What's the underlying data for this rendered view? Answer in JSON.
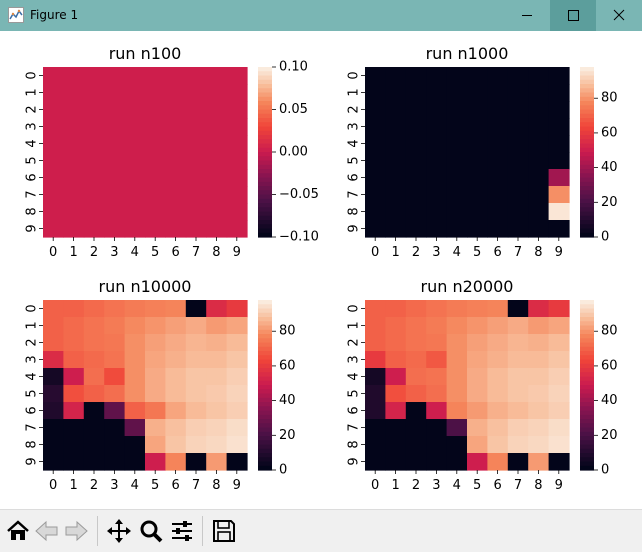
{
  "window": {
    "title": "Figure 1",
    "icon": "matplotlib-figure-icon"
  },
  "window_controls": [
    "minimize-icon",
    "maximize-icon",
    "close-icon"
  ],
  "toolbar": {
    "buttons": [
      "home-icon",
      "back-arrow-icon",
      "forward-arrow-icon",
      "pan-move-icon",
      "zoom-magnifier-icon",
      "configure-subplots-icon",
      "save-floppy-icon"
    ]
  },
  "chart_data": [
    {
      "type": "heatmap",
      "title": "run n100",
      "xticks": [
        "0",
        "1",
        "2",
        "3",
        "4",
        "5",
        "6",
        "7",
        "8",
        "9"
      ],
      "yticks": [
        "0",
        "1",
        "2",
        "3",
        "4",
        "5",
        "6",
        "7",
        "8",
        "9"
      ],
      "colorbar": {
        "min": -0.1,
        "max": 0.1,
        "ticks": [
          "0.10",
          "0.05",
          "0.00",
          "−0.05",
          "−0.10"
        ],
        "colormap": "rocket"
      },
      "values": [
        [
          0,
          0,
          0,
          0,
          0,
          0,
          0,
          0,
          0,
          0
        ],
        [
          0,
          0,
          0,
          0,
          0,
          0,
          0,
          0,
          0,
          0
        ],
        [
          0,
          0,
          0,
          0,
          0,
          0,
          0,
          0,
          0,
          0
        ],
        [
          0,
          0,
          0,
          0,
          0,
          0,
          0,
          0,
          0,
          0
        ],
        [
          0,
          0,
          0,
          0,
          0,
          0,
          0,
          0,
          0,
          0
        ],
        [
          0,
          0,
          0,
          0,
          0,
          0,
          0,
          0,
          0,
          0
        ],
        [
          0,
          0,
          0,
          0,
          0,
          0,
          0,
          0,
          0,
          0
        ],
        [
          0,
          0,
          0,
          0,
          0,
          0,
          0,
          0,
          0,
          0
        ],
        [
          0,
          0,
          0,
          0,
          0,
          0,
          0,
          0,
          0,
          0
        ],
        [
          0,
          0,
          0,
          0,
          0,
          0,
          0,
          0,
          0,
          0
        ]
      ]
    },
    {
      "type": "heatmap",
      "title": "run n1000",
      "xticks": [
        "0",
        "1",
        "2",
        "3",
        "4",
        "5",
        "6",
        "7",
        "8",
        "9"
      ],
      "yticks": [
        "0",
        "1",
        "2",
        "3",
        "4",
        "5",
        "6",
        "7",
        "8",
        "9"
      ],
      "colorbar": {
        "min": 0,
        "max": 98,
        "ticks": [
          "80",
          "60",
          "40",
          "20",
          "0"
        ],
        "colormap": "rocket"
      },
      "values": [
        [
          0,
          0,
          0,
          0,
          0,
          0,
          0,
          0,
          0,
          0
        ],
        [
          0,
          0,
          0,
          0,
          0,
          0,
          0,
          0,
          0,
          0
        ],
        [
          0,
          0,
          0,
          0,
          0,
          0,
          0,
          0,
          0,
          0
        ],
        [
          0,
          0,
          0,
          0,
          0,
          0,
          0,
          0,
          0,
          0
        ],
        [
          0,
          0,
          0,
          0,
          0,
          0,
          0,
          0,
          0,
          0
        ],
        [
          0,
          0,
          0,
          0,
          0,
          0,
          0,
          0,
          0,
          0
        ],
        [
          0,
          0,
          0,
          0,
          0,
          0,
          0,
          0,
          0,
          40
        ],
        [
          0,
          0,
          0,
          0,
          0,
          0,
          0,
          0,
          0,
          80
        ],
        [
          0,
          0,
          0,
          0,
          0,
          0,
          0,
          0,
          0,
          97
        ],
        [
          0,
          0,
          0,
          0,
          0,
          0,
          0,
          0,
          0,
          0
        ]
      ]
    },
    {
      "type": "heatmap",
      "title": "run n10000",
      "xticks": [
        "0",
        "1",
        "2",
        "3",
        "4",
        "5",
        "6",
        "7",
        "8",
        "9"
      ],
      "yticks": [
        "0",
        "1",
        "2",
        "3",
        "4",
        "5",
        "6",
        "7",
        "8",
        "9"
      ],
      "colorbar": {
        "min": 0,
        "max": 98,
        "ticks": [
          "80",
          "60",
          "40",
          "20",
          "0"
        ],
        "colormap": "rocket"
      },
      "values": [
        [
          70,
          70,
          72,
          74,
          76,
          77,
          78,
          0,
          55,
          60
        ],
        [
          70,
          72,
          74,
          76,
          79,
          81,
          83,
          85,
          82,
          84
        ],
        [
          70,
          72,
          74,
          75,
          80,
          83,
          85,
          87,
          86,
          88
        ],
        [
          55,
          70,
          72,
          74,
          80,
          84,
          86,
          88,
          88,
          90
        ],
        [
          5,
          50,
          73,
          65,
          80,
          85,
          88,
          90,
          90,
          92
        ],
        [
          10,
          66,
          70,
          73,
          80,
          85,
          88,
          90,
          91,
          93
        ],
        [
          8,
          52,
          0,
          25,
          70,
          75,
          84,
          88,
          90,
          92
        ],
        [
          0,
          0,
          0,
          0,
          25,
          86,
          89,
          92,
          93,
          95
        ],
        [
          0,
          0,
          0,
          0,
          0,
          84,
          90,
          93,
          94,
          96
        ],
        [
          0,
          0,
          0,
          0,
          0,
          50,
          78,
          0,
          82,
          0
        ]
      ]
    },
    {
      "type": "heatmap",
      "title": "run n20000",
      "xticks": [
        "0",
        "1",
        "2",
        "3",
        "4",
        "5",
        "6",
        "7",
        "8",
        "9"
      ],
      "yticks": [
        "0",
        "1",
        "2",
        "3",
        "4",
        "5",
        "6",
        "7",
        "8",
        "9"
      ],
      "colorbar": {
        "min": 0,
        "max": 98,
        "ticks": [
          "80",
          "60",
          "40",
          "20",
          "0"
        ],
        "colormap": "rocket"
      },
      "values": [
        [
          70,
          70,
          72,
          74,
          76,
          77,
          78,
          0,
          55,
          60
        ],
        [
          70,
          72,
          74,
          76,
          79,
          81,
          83,
          85,
          82,
          84
        ],
        [
          70,
          72,
          74,
          75,
          80,
          83,
          85,
          87,
          86,
          88
        ],
        [
          60,
          70,
          72,
          68,
          80,
          84,
          86,
          88,
          88,
          90
        ],
        [
          5,
          50,
          73,
          74,
          80,
          85,
          88,
          90,
          90,
          92
        ],
        [
          8,
          66,
          70,
          73,
          80,
          85,
          88,
          90,
          91,
          93
        ],
        [
          8,
          52,
          0,
          50,
          78,
          82,
          86,
          88,
          90,
          92
        ],
        [
          0,
          0,
          0,
          0,
          20,
          86,
          89,
          92,
          93,
          95
        ],
        [
          0,
          0,
          0,
          0,
          0,
          84,
          90,
          93,
          94,
          96
        ],
        [
          0,
          0,
          0,
          0,
          0,
          50,
          78,
          0,
          82,
          0
        ]
      ]
    }
  ]
}
